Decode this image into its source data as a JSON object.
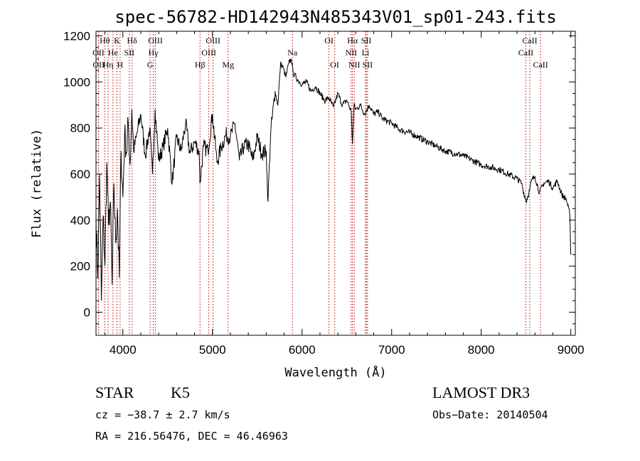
{
  "chart_data": {
    "type": "line",
    "title": "spec-56782-HD142943N485343V01_sp01-243.fits",
    "xlabel": "Wavelength (Å)",
    "ylabel": "Flux (relative)",
    "xlim": [
      3700,
      9050
    ],
    "ylim": [
      -100,
      1220
    ],
    "xticks": [
      4000,
      5000,
      6000,
      7000,
      8000,
      9000
    ],
    "yticks": [
      0,
      200,
      400,
      600,
      800,
      1000,
      1200
    ],
    "series": [
      {
        "name": "flux",
        "x": [
          3700,
          3720,
          3740,
          3760,
          3780,
          3800,
          3820,
          3840,
          3860,
          3880,
          3900,
          3920,
          3940,
          3960,
          3980,
          4000,
          4020,
          4040,
          4060,
          4080,
          4100,
          4120,
          4150,
          4200,
          4250,
          4300,
          4330,
          4360,
          4400,
          4450,
          4500,
          4550,
          4600,
          4650,
          4700,
          4750,
          4800,
          4850,
          4860,
          4900,
          4950,
          5000,
          5050,
          5100,
          5150,
          5200,
          5250,
          5300,
          5350,
          5400,
          5450,
          5500,
          5550,
          5600,
          5620,
          5650,
          5700,
          5730,
          5760,
          5790,
          5820,
          5850,
          5880,
          5900,
          5950,
          6000,
          6050,
          6100,
          6150,
          6200,
          6250,
          6300,
          6350,
          6400,
          6450,
          6500,
          6550,
          6563,
          6580,
          6600,
          6650,
          6700,
          6750,
          6800,
          6850,
          6900,
          7000,
          7100,
          7200,
          7300,
          7400,
          7500,
          7600,
          7700,
          7800,
          7900,
          8000,
          8100,
          8200,
          8300,
          8400,
          8450,
          8500,
          8540,
          8560,
          8600,
          8650,
          8700,
          8750,
          8800,
          8850,
          8900,
          8950,
          8990,
          9000
        ],
        "values": [
          420,
          150,
          600,
          50,
          420,
          200,
          650,
          380,
          480,
          120,
          560,
          300,
          450,
          150,
          700,
          500,
          780,
          690,
          820,
          640,
          880,
          700,
          760,
          860,
          680,
          800,
          600,
          880,
          660,
          720,
          800,
          560,
          760,
          700,
          820,
          690,
          740,
          700,
          560,
          720,
          700,
          860,
          650,
          720,
          770,
          760,
          820,
          660,
          720,
          730,
          660,
          760,
          690,
          700,
          480,
          780,
          960,
          900,
          1080,
          1060,
          1020,
          1080,
          1100,
          1040,
          1010,
          990,
          1000,
          960,
          980,
          950,
          920,
          930,
          890,
          950,
          900,
          920,
          870,
          730,
          900,
          880,
          900,
          860,
          900,
          860,
          870,
          840,
          820,
          790,
          780,
          760,
          740,
          720,
          700,
          690,
          680,
          660,
          640,
          630,
          620,
          600,
          580,
          560,
          480,
          530,
          570,
          590,
          520,
          560,
          570,
          540,
          570,
          510,
          490,
          420,
          250
        ]
      }
    ],
    "lines": [
      {
        "name": "Hθ",
        "x": 3798,
        "row": 0
      },
      {
        "name": "OII",
        "x": 3727,
        "row": 1
      },
      {
        "name": "OII",
        "x": 3729,
        "row": 2
      },
      {
        "name": "K",
        "x": 3934,
        "row": 0
      },
      {
        "name": "He",
        "x": 3889,
        "row": 1
      },
      {
        "name": "Hη",
        "x": 3835,
        "row": 2
      },
      {
        "name": "Hδ",
        "x": 4102,
        "row": 0
      },
      {
        "name": "SII",
        "x": 4072,
        "row": 1
      },
      {
        "name": "H",
        "x": 3969,
        "row": 2
      },
      {
        "name": "OIII",
        "x": 4363,
        "row": 0
      },
      {
        "name": "Hγ",
        "x": 4340,
        "row": 1
      },
      {
        "name": "G",
        "x": 4304,
        "row": 2
      },
      {
        "name": "OIII",
        "x": 5007,
        "row": 0
      },
      {
        "name": "OIII",
        "x": 4959,
        "row": 1
      },
      {
        "name": "Hβ",
        "x": 4861,
        "row": 2
      },
      {
        "name": "Mg",
        "x": 5175,
        "row": 2
      },
      {
        "name": "Na",
        "x": 5893,
        "row": 1
      },
      {
        "name": "OI",
        "x": 6300,
        "row": 0
      },
      {
        "name": "OI",
        "x": 6364,
        "row": 2
      },
      {
        "name": "Hα",
        "x": 6563,
        "row": 0
      },
      {
        "name": "NII",
        "x": 6548,
        "row": 1
      },
      {
        "name": "NII",
        "x": 6583,
        "row": 2
      },
      {
        "name": "SII",
        "x": 6717,
        "row": 0
      },
      {
        "name": "Li",
        "x": 6708,
        "row": 1
      },
      {
        "name": "SII",
        "x": 6731,
        "row": 2
      },
      {
        "name": "CaII",
        "x": 8542,
        "row": 0
      },
      {
        "name": "CaII",
        "x": 8498,
        "row": 1
      },
      {
        "name": "CaII",
        "x": 8662,
        "row": 2
      }
    ]
  },
  "info": {
    "object_type": "STAR",
    "subclass": "K5",
    "survey": "LAMOST DR3",
    "cz": "cz = −38.7 ± 2.7 km/s",
    "obs_date": "Obs−Date: 20140504",
    "radec": "RA = 216.56476, DEC =  46.46963"
  }
}
